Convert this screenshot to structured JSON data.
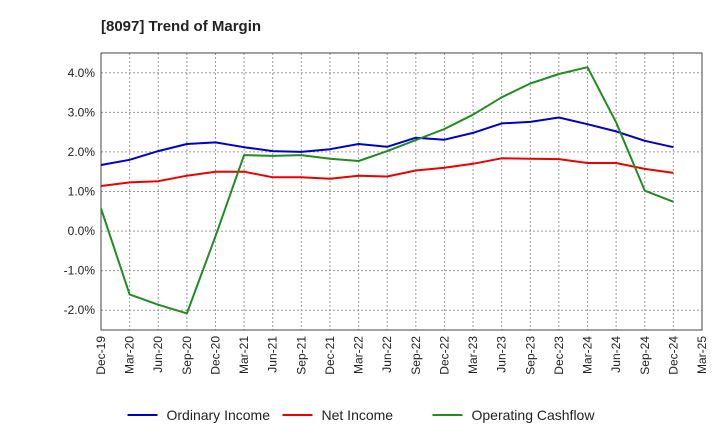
{
  "chart_data": {
    "type": "line",
    "title": "[8097]  Trend of Margin",
    "xlabel": "",
    "ylabel": "",
    "ylim": [
      -2.5,
      4.5
    ],
    "yticks": [
      -2.0,
      -1.0,
      0.0,
      1.0,
      2.0,
      3.0,
      4.0
    ],
    "ytick_labels": [
      "-2.0%",
      "-1.0%",
      "0.0%",
      "1.0%",
      "2.0%",
      "3.0%",
      "4.0%"
    ],
    "x_labels": [
      "Dec-19",
      "Mar-20",
      "Jun-20",
      "Sep-20",
      "Dec-20",
      "Mar-21",
      "Jun-21",
      "Sep-21",
      "Dec-21",
      "Mar-22",
      "Jun-22",
      "Sep-22",
      "Dec-22",
      "Mar-23",
      "Jun-23",
      "Sep-23",
      "Dec-23",
      "Mar-24",
      "Jun-24",
      "Sep-24",
      "Dec-24",
      "Mar-25"
    ],
    "grid": true,
    "legend_position": "bottom",
    "series": [
      {
        "name": "Ordinary Income",
        "color": "#0000cc",
        "values": [
          1.67,
          1.8,
          2.02,
          2.2,
          2.24,
          2.12,
          2.02,
          2.0,
          2.07,
          2.2,
          2.13,
          2.36,
          2.31,
          2.48,
          2.72,
          2.76,
          2.87,
          2.7,
          2.52,
          2.28,
          2.12,
          null
        ]
      },
      {
        "name": "Net Income",
        "color": "#ee0000",
        "values": [
          1.14,
          1.23,
          1.26,
          1.4,
          1.5,
          1.5,
          1.36,
          1.36,
          1.32,
          1.4,
          1.38,
          1.53,
          1.6,
          1.7,
          1.84,
          1.83,
          1.82,
          1.72,
          1.72,
          1.57,
          1.47,
          null
        ]
      },
      {
        "name": "Operating Cashflow",
        "color": "#228b22",
        "values": [
          0.57,
          -1.6,
          -1.86,
          -2.08,
          -0.13,
          1.92,
          1.9,
          1.92,
          1.83,
          1.77,
          2.02,
          2.3,
          2.58,
          2.94,
          3.38,
          3.73,
          3.97,
          4.14,
          2.75,
          1.02,
          0.74,
          null
        ]
      }
    ]
  }
}
